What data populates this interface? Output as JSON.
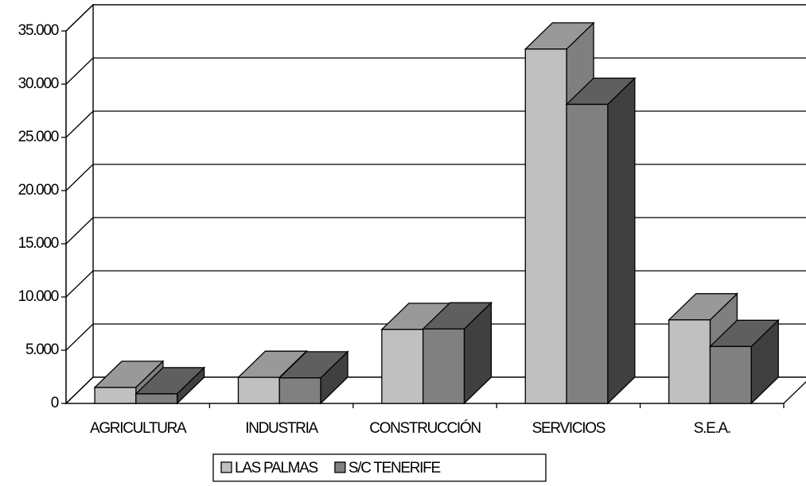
{
  "chart_data": {
    "type": "bar3d",
    "categories": [
      "AGRICULTURA",
      "INDUSTRIA",
      "CONSTRUCCIÓN",
      "SERVICIOS",
      "S.E.A."
    ],
    "series": [
      {
        "name": "LAS PALMAS",
        "color": "#c0c0c0",
        "values": [
          1500,
          2450,
          6950,
          33300,
          7850
        ]
      },
      {
        "name": "S/C TENERIFE",
        "color": "#808080",
        "values": [
          900,
          2400,
          7000,
          28100,
          5350
        ]
      }
    ],
    "ylim": [
      0,
      35000
    ],
    "yticks": [
      0,
      {
        "value": 5000,
        "label": "5.000"
      },
      {
        "value": 10000,
        "label": "10.000"
      },
      {
        "value": 15000,
        "label": "15.000"
      },
      {
        "value": 20000,
        "label": "20.000"
      },
      {
        "value": 25000,
        "label": "25.000"
      },
      {
        "value": 30000,
        "label": "30.000"
      },
      {
        "value": 35000,
        "label": "35.000"
      }
    ],
    "grid": true,
    "legend": "bottom"
  }
}
